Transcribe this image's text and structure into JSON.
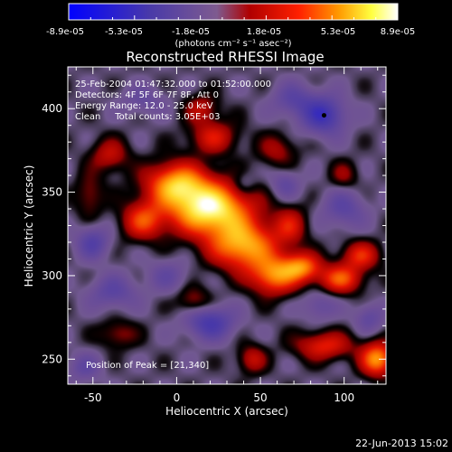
{
  "chart_data": {
    "type": "heatmap",
    "title": "Reconstructed RHESSI Image",
    "xlabel": "Heliocentric X (arcsec)",
    "ylabel": "Heliocentric Y (arcsec)",
    "xlim": [
      -65,
      125
    ],
    "ylim": [
      235,
      425
    ],
    "x_ticks": [
      -50,
      0,
      50,
      100
    ],
    "y_ticks": [
      250,
      300,
      350,
      400
    ],
    "colorbar": {
      "range": [
        -8.9e-05,
        8.9e-05
      ],
      "tick_labels": [
        "-8.9e-05",
        "-5.3e-05",
        "-1.8e-05",
        "1.8e-05",
        "5.3e-05",
        "8.9e-05"
      ],
      "units_label": "(photons cm⁻² s⁻¹ asec⁻²)"
    },
    "annotations": [
      "25-Feb-2004 01:47:32.000 to 01:52:00.000",
      "Detectors: 4F 5F 6F 7F 8F, Att 0",
      "Energy Range: 12.0 - 25.0 keV",
      "Clean     Total counts: 3.05E+03"
    ],
    "peak_label": "Position of Peak = [21,340]",
    "peak": [
      21,
      340
    ],
    "blobs": [
      {
        "x": 20,
        "y": 340,
        "sx": 17,
        "sy": 11,
        "v": 8.9e-05
      },
      {
        "x": 0,
        "y": 355,
        "sx": 13,
        "sy": 9,
        "v": 6.5e-05
      },
      {
        "x": 40,
        "y": 318,
        "sx": 14,
        "sy": 10,
        "v": 6.8e-05
      },
      {
        "x": -20,
        "y": 333,
        "sx": 9,
        "sy": 8,
        "v": 4.5e-05
      },
      {
        "x": 58,
        "y": 300,
        "sx": 10,
        "sy": 8,
        "v": 5.8e-05
      },
      {
        "x": 75,
        "y": 305,
        "sx": 8,
        "sy": 6,
        "v": 5.5e-05
      },
      {
        "x": 98,
        "y": 298,
        "sx": 9,
        "sy": 6,
        "v": 5e-05
      },
      {
        "x": 110,
        "y": 312,
        "sx": 8,
        "sy": 6,
        "v": 4e-05
      },
      {
        "x": 88,
        "y": 258,
        "sx": 12,
        "sy": 6,
        "v": 4e-05
      },
      {
        "x": 120,
        "y": 250,
        "sx": 7,
        "sy": 7,
        "v": 6.5e-05
      },
      {
        "x": 22,
        "y": 383,
        "sx": 10,
        "sy": 7,
        "v": 3.5e-05
      },
      {
        "x": 15,
        "y": 400,
        "sx": 7,
        "sy": 6,
        "v": 2.8e-05
      },
      {
        "x": -40,
        "y": 372,
        "sx": 8,
        "sy": 7,
        "v": 3e-05
      },
      {
        "x": -52,
        "y": 348,
        "sx": 6,
        "sy": 9,
        "v": 2.2e-05
      },
      {
        "x": 60,
        "y": 375,
        "sx": 8,
        "sy": 7,
        "v": 2.4e-05
      },
      {
        "x": 68,
        "y": 330,
        "sx": 7,
        "sy": 8,
        "v": 3.2e-05
      },
      {
        "x": 10,
        "y": 285,
        "sx": 7,
        "sy": 6,
        "v": 2.4e-05
      },
      {
        "x": -35,
        "y": 265,
        "sx": 8,
        "sy": 6,
        "v": 2.2e-05
      },
      {
        "x": 45,
        "y": 250,
        "sx": 6,
        "sy": 6,
        "v": 3e-05
      },
      {
        "x": 100,
        "y": 360,
        "sx": 6,
        "sy": 6,
        "v": 2e-05
      },
      {
        "x": 20,
        "y": 272,
        "sx": 10,
        "sy": 7,
        "v": -4e-05
      },
      {
        "x": -38,
        "y": 290,
        "sx": 10,
        "sy": 7,
        "v": -2.5e-05
      },
      {
        "x": -50,
        "y": 320,
        "sx": 7,
        "sy": 7,
        "v": -3e-05
      },
      {
        "x": -5,
        "y": 300,
        "sx": 9,
        "sy": 7,
        "v": -1.8e-05
      },
      {
        "x": 88,
        "y": 396,
        "sx": 9,
        "sy": 8,
        "v": -4.5e-05
      },
      {
        "x": 70,
        "y": 405,
        "sx": 9,
        "sy": 7,
        "v": -2.5e-05
      },
      {
        "x": 100,
        "y": 340,
        "sx": 9,
        "sy": 8,
        "v": -2.5e-05
      },
      {
        "x": 85,
        "y": 282,
        "sx": 7,
        "sy": 6,
        "v": -2e-05
      },
      {
        "x": 65,
        "y": 355,
        "sx": 6,
        "sy": 6,
        "v": -2.2e-05
      },
      {
        "x": -55,
        "y": 245,
        "sx": 7,
        "sy": 6,
        "v": -2e-05
      },
      {
        "x": 115,
        "y": 275,
        "sx": 6,
        "sy": 6,
        "v": -2.2e-05
      },
      {
        "x": -20,
        "y": 405,
        "sx": 9,
        "sy": 6,
        "v": -1.8e-05
      },
      {
        "x": 40,
        "y": 355,
        "sx": 5,
        "sy": 5,
        "v": -1.5e-05
      }
    ]
  },
  "footer": {
    "timestamp": "22-Jun-2013 15:02"
  }
}
